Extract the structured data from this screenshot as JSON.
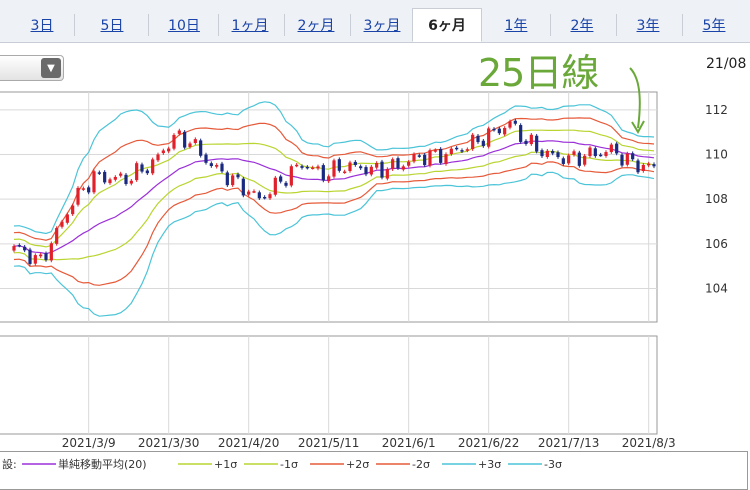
{
  "tabs": [
    {
      "label": "3日",
      "active": false
    },
    {
      "label": "5日",
      "active": false
    },
    {
      "label": "10日",
      "active": false
    },
    {
      "label": "1ヶ月",
      "active": false
    },
    {
      "label": "2ヶ月",
      "active": false
    },
    {
      "label": "3ヶ月",
      "active": false
    },
    {
      "label": "6ヶ月",
      "active": true
    },
    {
      "label": "1年",
      "active": false
    },
    {
      "label": "2年",
      "active": false
    },
    {
      "label": "3年",
      "active": false
    },
    {
      "label": "5年",
      "active": false
    }
  ],
  "date_label": "21/08",
  "annotation": "25日線",
  "colors": {
    "up": "#e0202a",
    "down": "#1a2a80",
    "sma": "#9b30d9",
    "sigma1": "#b9d530",
    "sigma2": "#e65a3a",
    "sigma3": "#4cc4d8",
    "grid": "#d9d9d9",
    "annotation": "#6aa83a"
  },
  "chart_data": {
    "type": "line",
    "ylim": [
      102.5,
      112.8
    ],
    "y_ticks": [
      104,
      106,
      108,
      110,
      112
    ],
    "x_ticks": [
      "2021/3/9",
      "2021/3/30",
      "2021/4/20",
      "2021/5/11",
      "2021/6/1",
      "2021/6/22",
      "2021/7/13",
      "2021/8/3"
    ],
    "x_tick_index": [
      14,
      29,
      44,
      59,
      74,
      89,
      104,
      119
    ],
    "n_points": 121,
    "legend_prefix": "設:",
    "legend": [
      {
        "name": "単純移動平均(20)",
        "key": "sma"
      },
      {
        "name": "+1σ",
        "key": "sigma1"
      },
      {
        "name": "-1σ",
        "key": "sigma1"
      },
      {
        "name": "+2σ",
        "key": "sigma2"
      },
      {
        "name": "-2σ",
        "key": "sigma2"
      },
      {
        "name": "+3σ",
        "key": "sigma3"
      },
      {
        "name": "-3σ",
        "key": "sigma3"
      }
    ],
    "close_anchors": [
      [
        0,
        105.9
      ],
      [
        5,
        105.2
      ],
      [
        8,
        106.5
      ],
      [
        11,
        107.9
      ],
      [
        15,
        109.0
      ],
      [
        21,
        108.9
      ],
      [
        26,
        109.6
      ],
      [
        30,
        110.8
      ],
      [
        33,
        110.6
      ],
      [
        37,
        109.5
      ],
      [
        42,
        108.7
      ],
      [
        46,
        108.0
      ],
      [
        50,
        108.8
      ],
      [
        54,
        109.6
      ],
      [
        58,
        109.1
      ],
      [
        62,
        109.5
      ],
      [
        68,
        109.3
      ],
      [
        72,
        109.5
      ],
      [
        76,
        109.9
      ],
      [
        81,
        110.0
      ],
      [
        86,
        110.5
      ],
      [
        90,
        111.0
      ],
      [
        93,
        111.4
      ],
      [
        96,
        110.6
      ],
      [
        100,
        110.0
      ],
      [
        104,
        109.8
      ],
      [
        108,
        110.0
      ],
      [
        112,
        110.2
      ],
      [
        116,
        109.6
      ],
      [
        120,
        109.4
      ]
    ]
  }
}
